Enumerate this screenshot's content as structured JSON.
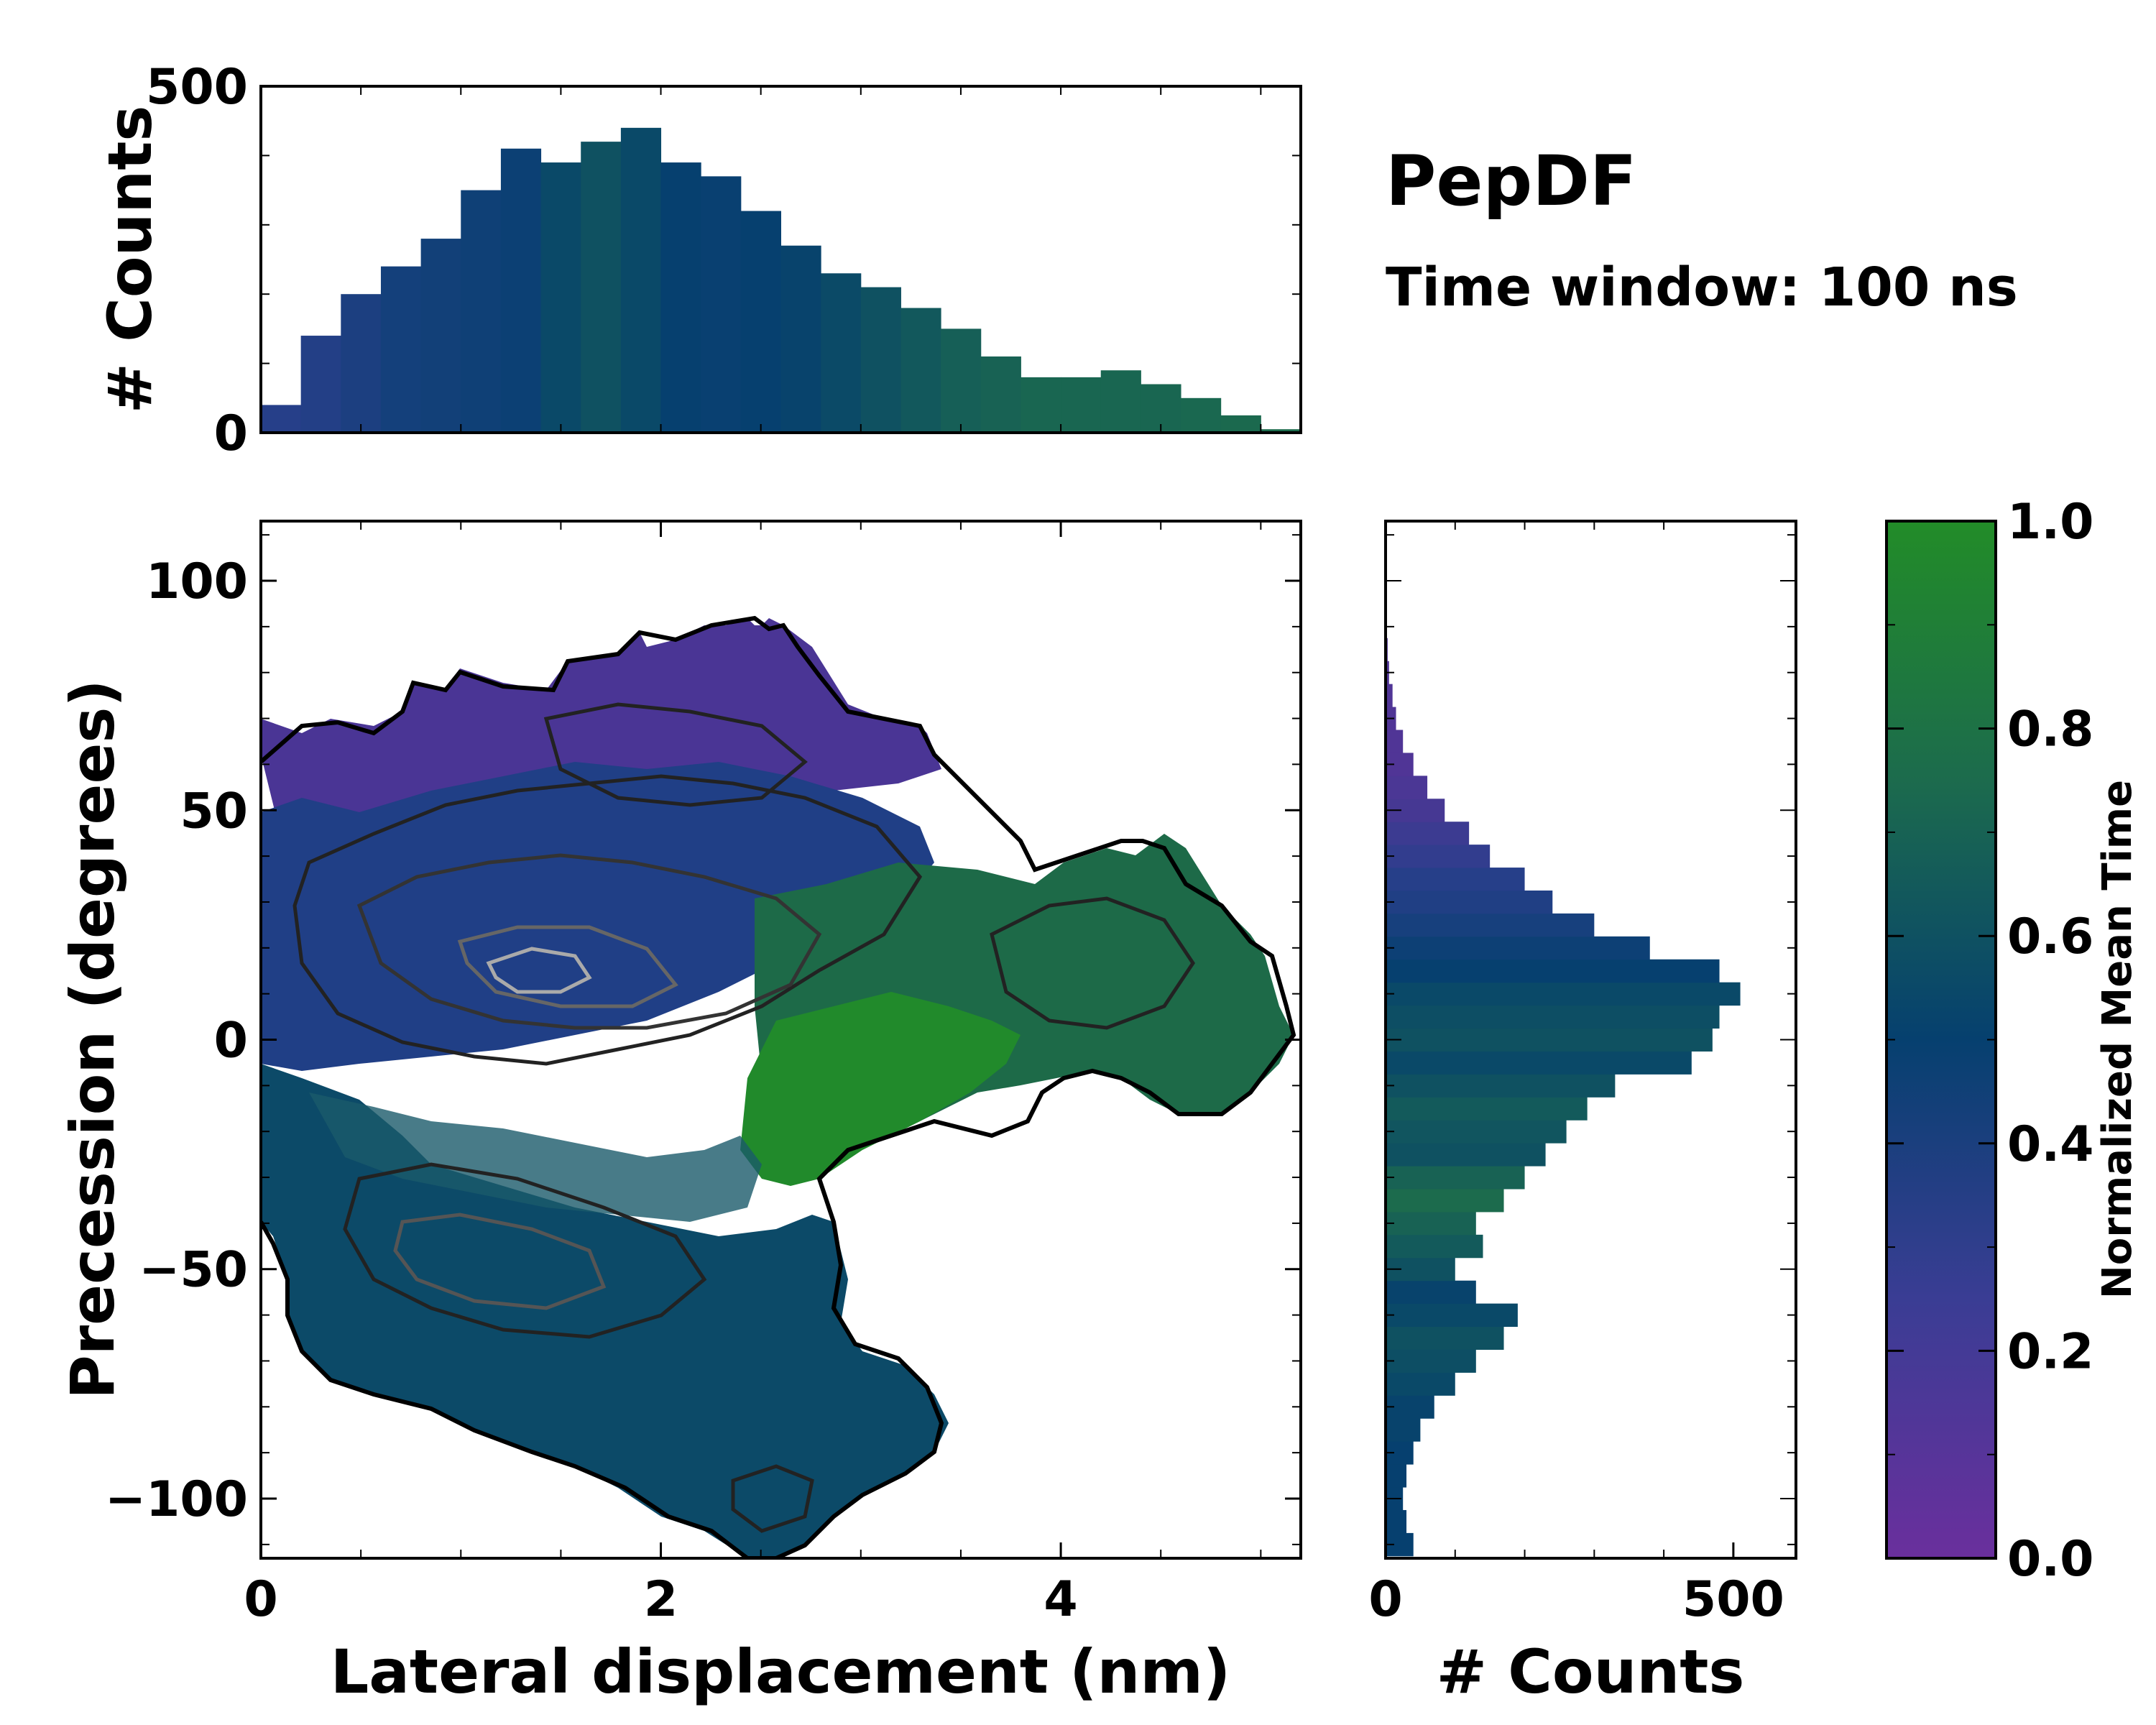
{
  "chart_data": {
    "type": "heatmap",
    "title": "PepDF",
    "subtitle": "Time window: 100 ns",
    "xlabel": "Lateral displacement (nm)",
    "ylabel": "Precession (degrees)",
    "xlim": [
      0,
      5.2
    ],
    "ylim": [
      -113,
      113
    ],
    "x_ticks": [
      0,
      2,
      4
    ],
    "x_tick_labels": [
      "0",
      "2",
      "4"
    ],
    "y_ticks": [
      -100,
      -50,
      0,
      50,
      100
    ],
    "y_tick_labels": [
      "−100",
      "−50",
      "0",
      "50",
      "100"
    ],
    "colorbar": {
      "label": "Normalized Mean Time",
      "range": [
        0.0,
        1.0
      ],
      "ticks": [
        0.0,
        0.2,
        0.4,
        0.6,
        0.8,
        1.0
      ],
      "tick_labels": [
        "0.0",
        "0.2",
        "0.4",
        "0.6",
        "0.8",
        "1.0"
      ],
      "colors": [
        "#6a2f9d",
        "#2a3f8c",
        "#06406f",
        "#1c6b4d",
        "#228c28"
      ]
    },
    "top_histogram": {
      "ylabel": "# Counts",
      "ylim": [
        0,
        500
      ],
      "y_ticks": [
        0,
        500
      ],
      "y_tick_labels": [
        "0",
        "500"
      ],
      "bin_centers": [
        0.1,
        0.3,
        0.5,
        0.7,
        0.9,
        1.1,
        1.3,
        1.5,
        1.7,
        1.9,
        2.1,
        2.3,
        2.5,
        2.7,
        2.9,
        3.1,
        3.3,
        3.5,
        3.7,
        3.9,
        4.1,
        4.3,
        4.5,
        4.7,
        4.9,
        5.1
      ],
      "counts": [
        40,
        140,
        200,
        240,
        280,
        350,
        410,
        390,
        420,
        440,
        390,
        370,
        320,
        270,
        230,
        210,
        180,
        150,
        110,
        80,
        80,
        90,
        70,
        50,
        25,
        5
      ],
      "mean_time": [
        0.28,
        0.3,
        0.35,
        0.4,
        0.42,
        0.44,
        0.46,
        0.55,
        0.6,
        0.55,
        0.5,
        0.48,
        0.5,
        0.52,
        0.56,
        0.6,
        0.64,
        0.68,
        0.7,
        0.72,
        0.72,
        0.72,
        0.72,
        0.73,
        0.74,
        0.75
      ]
    },
    "right_histogram": {
      "xlabel": "# Counts",
      "xlim": [
        0,
        590
      ],
      "x_ticks": [
        0,
        500
      ],
      "x_tick_labels": [
        "0",
        "500"
      ],
      "bin_centers": [
        -110,
        -105,
        -100,
        -95,
        -90,
        -85,
        -80,
        -75,
        -70,
        -65,
        -60,
        -55,
        -50,
        -45,
        -40,
        -35,
        -30,
        -25,
        -20,
        -15,
        -10,
        -5,
        0,
        5,
        10,
        15,
        20,
        25,
        30,
        35,
        40,
        45,
        50,
        55,
        60,
        65,
        70,
        75,
        80,
        85
      ],
      "counts": [
        40,
        30,
        25,
        30,
        40,
        50,
        70,
        100,
        130,
        170,
        190,
        130,
        100,
        140,
        130,
        170,
        200,
        230,
        260,
        290,
        330,
        440,
        470,
        480,
        510,
        480,
        380,
        300,
        240,
        200,
        150,
        120,
        85,
        60,
        40,
        25,
        15,
        10,
        5,
        3
      ],
      "mean_time": [
        0.5,
        0.5,
        0.5,
        0.5,
        0.5,
        0.52,
        0.52,
        0.55,
        0.58,
        0.6,
        0.55,
        0.52,
        0.6,
        0.65,
        0.7,
        0.75,
        0.7,
        0.6,
        0.62,
        0.65,
        0.6,
        0.55,
        0.6,
        0.58,
        0.55,
        0.5,
        0.45,
        0.38,
        0.32,
        0.28,
        0.22,
        0.18,
        0.14,
        0.12,
        0.1,
        0.1,
        0.1,
        0.1,
        0.1,
        0.1
      ]
    },
    "density_contours": "black and grey contour lines over 2D density; white outline marks populated region boundary"
  }
}
